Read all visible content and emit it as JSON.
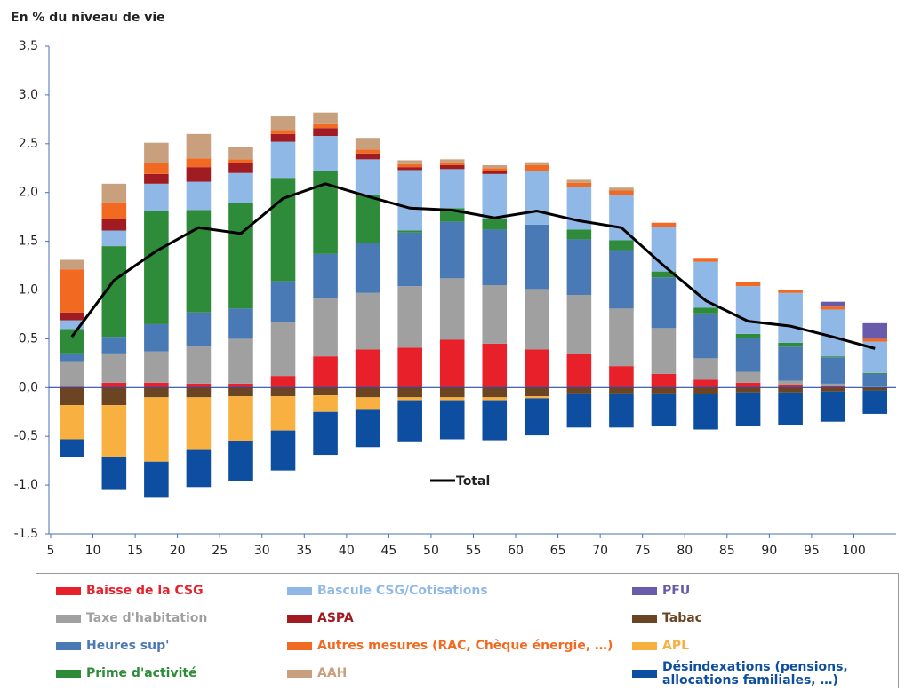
{
  "chart_data": {
    "type": "bar",
    "stacked": true,
    "ylabel": "En % du niveau de vie",
    "xlim": [
      5,
      105
    ],
    "xticks": [
      5,
      10,
      15,
      20,
      25,
      30,
      35,
      40,
      45,
      50,
      55,
      60,
      65,
      70,
      75,
      80,
      85,
      90,
      95,
      100
    ],
    "ylim": [
      -1.5,
      3.5
    ],
    "yticks": [
      {
        "value": -1.5,
        "label": "-1,5"
      },
      {
        "value": -1.0,
        "label": "-1,0"
      },
      {
        "value": -0.5,
        "label": "-0,5"
      },
      {
        "value": 0,
        "label": "0,0"
      },
      {
        "value": 0.5,
        "label": "0,5"
      },
      {
        "value": 1.0,
        "label": "1,0"
      },
      {
        "value": 1.5,
        "label": "1,5"
      },
      {
        "value": 2.0,
        "label": "2,0"
      },
      {
        "value": 2.5,
        "label": "2,5"
      },
      {
        "value": 3.0,
        "label": "3,0"
      },
      {
        "value": 3.5,
        "label": "3,5"
      }
    ],
    "x": [
      7.5,
      12.5,
      17.5,
      22.5,
      27.5,
      32.5,
      37.5,
      42.5,
      47.5,
      52.5,
      57.5,
      62.5,
      67.5,
      72.5,
      77.5,
      82.5,
      87.5,
      92.5,
      97.5,
      102.5
    ],
    "series": [
      {
        "name": "Baisse de la CSG",
        "color": "#e8202a",
        "values": [
          0.01,
          0.05,
          0.05,
          0.04,
          0.04,
          0.12,
          0.32,
          0.39,
          0.41,
          0.49,
          0.45,
          0.39,
          0.34,
          0.22,
          0.14,
          0.08,
          0.05,
          0.03,
          0.02,
          0
        ]
      },
      {
        "name": "Taxe d'habitation",
        "color": "#a0a0a0",
        "values": [
          0.26,
          0.3,
          0.32,
          0.39,
          0.46,
          0.55,
          0.6,
          0.58,
          0.63,
          0.63,
          0.6,
          0.62,
          0.61,
          0.59,
          0.47,
          0.22,
          0.11,
          0.04,
          0.02,
          0.02
        ]
      },
      {
        "name": "Heures sup'",
        "color": "#4a7ab5",
        "values": [
          0.08,
          0.17,
          0.28,
          0.34,
          0.31,
          0.42,
          0.45,
          0.51,
          0.55,
          0.58,
          0.57,
          0.66,
          0.57,
          0.6,
          0.52,
          0.46,
          0.35,
          0.35,
          0.27,
          0.12
        ]
      },
      {
        "name": "Prime d'activité",
        "color": "#2e8b3a",
        "values": [
          0.25,
          0.93,
          1.16,
          1.05,
          1.08,
          1.06,
          0.85,
          0.49,
          0.02,
          0.14,
          0.11,
          0,
          0.1,
          0.1,
          0.06,
          0.06,
          0.04,
          0.04,
          0.01,
          0.01
        ]
      },
      {
        "name": "Bascule CSG/Cotisations",
        "color": "#8fb8e6",
        "values": [
          0.09,
          0.16,
          0.28,
          0.29,
          0.31,
          0.37,
          0.36,
          0.37,
          0.62,
          0.4,
          0.46,
          0.55,
          0.44,
          0.46,
          0.46,
          0.47,
          0.49,
          0.51,
          0.48,
          0.32
        ]
      },
      {
        "name": "ASPA",
        "color": "#a01c22",
        "values": [
          0.08,
          0.12,
          0.1,
          0.15,
          0.1,
          0.08,
          0.08,
          0.06,
          0.03,
          0.04,
          0.03,
          0,
          0,
          0,
          0,
          0,
          0,
          0,
          0,
          0
        ]
      },
      {
        "name": "Autres mesures (RAC, Chèque énergie, …)",
        "color": "#f26a22",
        "values": [
          0.44,
          0.17,
          0.11,
          0.09,
          0.04,
          0.04,
          0.04,
          0.04,
          0.03,
          0.03,
          0.03,
          0.06,
          0.04,
          0.05,
          0.04,
          0.04,
          0.04,
          0.03,
          0.03,
          0.03
        ]
      },
      {
        "name": "AAH",
        "color": "#c9a07e",
        "values": [
          0.1,
          0.19,
          0.21,
          0.25,
          0.13,
          0.14,
          0.12,
          0.12,
          0.04,
          0.03,
          0.03,
          0.03,
          0.03,
          0.03,
          0,
          0,
          0,
          0,
          0,
          0
        ]
      },
      {
        "name": "PFU",
        "color": "#6a5aab",
        "values": [
          0,
          0,
          0,
          0,
          0,
          0,
          0,
          0,
          0,
          0,
          0,
          0,
          0,
          0,
          0,
          0,
          0,
          0,
          0.05,
          0.16
        ]
      },
      {
        "name": "Tabac",
        "color": "#6b4423",
        "values": [
          -0.18,
          -0.18,
          -0.1,
          -0.1,
          -0.09,
          -0.09,
          -0.08,
          -0.1,
          -0.1,
          -0.1,
          -0.1,
          -0.09,
          -0.06,
          -0.06,
          -0.06,
          -0.07,
          -0.05,
          -0.05,
          -0.04,
          -0.03
        ]
      },
      {
        "name": "APL",
        "color": "#f8b040",
        "values": [
          -0.35,
          -0.53,
          -0.66,
          -0.54,
          -0.46,
          -0.35,
          -0.17,
          -0.12,
          -0.03,
          -0.03,
          -0.03,
          -0.02,
          0,
          0,
          0,
          0,
          0,
          0,
          0,
          0
        ]
      },
      {
        "name": "Désindexations (pensions, allocations familiales, …)",
        "color": "#0e4ea0",
        "values": [
          -0.18,
          -0.34,
          -0.37,
          -0.38,
          -0.41,
          -0.41,
          -0.44,
          -0.39,
          -0.43,
          -0.4,
          -0.41,
          -0.38,
          -0.35,
          -0.35,
          -0.33,
          -0.36,
          -0.34,
          -0.33,
          -0.31,
          -0.24
        ]
      }
    ],
    "total": {
      "name": "Total",
      "color": "#000000",
      "values": [
        0.52,
        1.1,
        1.4,
        1.64,
        1.58,
        1.94,
        2.09,
        1.96,
        1.84,
        1.82,
        1.74,
        1.81,
        1.71,
        1.64,
        1.25,
        0.89,
        0.68,
        0.63,
        0.52,
        0.4
      ]
    }
  }
}
